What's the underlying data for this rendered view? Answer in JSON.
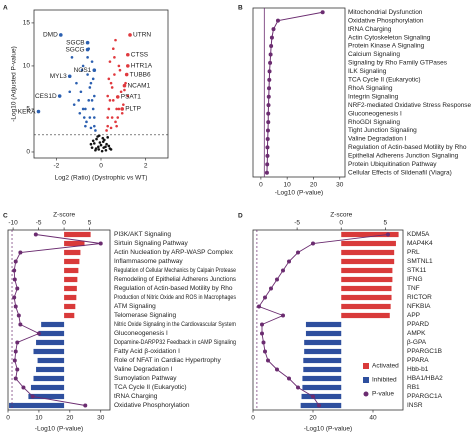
{
  "chart_data": [
    {
      "type": "scatter",
      "panel": "A",
      "xlabel": "Log2 (Ratio) (Dystrophic vs WT)",
      "ylabel": "-Log10 (Adjusted P-value)",
      "xlim": [
        -3,
        3
      ],
      "ylim": [
        -0.7,
        16.5
      ],
      "xticks": [
        -2,
        0,
        2
      ],
      "yticks": [
        0,
        5,
        10,
        15
      ],
      "threshold": 2,
      "series": [
        {
          "color": "#111111",
          "x": [
            -0.4,
            -0.3,
            -0.2,
            -0.1,
            0,
            0.1,
            0.2,
            0.3,
            0.4,
            -0.25,
            -0.15,
            0.05,
            0.15,
            0.25,
            -0.05,
            0.35,
            -0.35,
            0.45,
            -0.45,
            0.12,
            -0.12,
            0.08,
            -0.08,
            0.22,
            -0.22
          ],
          "y": [
            0.5,
            1,
            1.5,
            0.3,
            0.8,
            1.2,
            0.6,
            1.7,
            0.4,
            0.2,
            1.8,
            0.1,
            1.4,
            0.9,
            1.1,
            0.7,
            1.3,
            0.3,
            0.9,
            0.5,
            0.6,
            1.6,
            1.9,
            0.2,
            0.4
          ]
        },
        {
          "color": "#2b5fb0",
          "x": [
            -0.3,
            -0.5,
            -0.7,
            -0.4,
            -0.9,
            -1.1,
            -0.6,
            -0.8,
            -1.3,
            -0.35,
            -0.45,
            -0.55,
            -1.0,
            -0.75,
            -0.65,
            -0.25,
            -0.85,
            -1.2,
            -0.5,
            -0.4,
            -0.3,
            -0.95,
            -0.6,
            -0.7,
            -1.4,
            -0.45,
            -0.35,
            -0.55,
            -0.8,
            -0.3
          ],
          "y": [
            3,
            4,
            5,
            6,
            7,
            8,
            9,
            10,
            11,
            5,
            8,
            12,
            6,
            4,
            3.5,
            2.5,
            9.5,
            5.5,
            7.5,
            10.5,
            6.5,
            4.5,
            11,
            3,
            7,
            2.8,
            8.5,
            6,
            5,
            4
          ]
        },
        {
          "color": "#e0393e",
          "x": [
            0.3,
            0.5,
            0.7,
            0.4,
            0.9,
            1.1,
            0.6,
            0.8,
            1.2,
            0.35,
            0.45,
            0.55,
            1.0,
            0.75,
            0.65,
            0.25,
            0.85,
            0.5,
            0.4,
            0.3,
            0.95,
            0.6,
            0.7,
            0.45,
            0.35,
            0.55,
            0.8,
            0.3,
            1.05,
            0.65
          ],
          "y": [
            3,
            4,
            5,
            6,
            7,
            8,
            9,
            10,
            6.5,
            5,
            8,
            12,
            5.5,
            4,
            3.5,
            2.5,
            9.5,
            7.5,
            10.5,
            6.5,
            4.5,
            11,
            3,
            2.8,
            8.5,
            6,
            5,
            4,
            7.2,
            13
          ]
        },
        {
          "color": "#2b5fb0",
          "labels": [
            "DMD",
            "SGCB",
            "SGCG",
            "NOS1",
            "MYL3",
            "CES1D",
            "KERA"
          ],
          "x": [
            -1.8,
            -0.6,
            -0.6,
            -0.3,
            -1.4,
            -1.85,
            -2.8
          ],
          "y": [
            13.6,
            12.7,
            11.9,
            9.5,
            8.8,
            6.5,
            4.7
          ]
        },
        {
          "color": "#e0393e",
          "labels": [
            "UTRN",
            "CTSS",
            "HTR1A",
            "TUBB6",
            "NCAM1",
            "PSAT1",
            "PLTP"
          ],
          "x": [
            1.3,
            1.2,
            1.2,
            1.15,
            1.05,
            0.75,
            0.95
          ],
          "y": [
            13.6,
            11.3,
            10,
            9,
            7.7,
            6.4,
            5
          ]
        }
      ]
    },
    {
      "type": "line",
      "panel": "B",
      "color": "#6b2c70",
      "categories": [
        "Mitochondrial Dysfunction",
        "Oxidative Phosphorylation",
        "tRNA Charging",
        "Actin Cytoskeleton Signaling",
        "Protein Kinase A Signaling",
        "Calcium Signaling",
        "Signaling by Rho Family GTPases",
        "ILK Signaling",
        "TCA Cycle II (Eukaryotic)",
        "RhoA Signaling",
        "Integrin Signaling",
        "NRF2-mediated Oxidative Stress Response",
        "Gluconeogenesis I",
        "RhoGDI Signaling",
        "Tight Junction Signaling",
        "Valine Degradation I",
        "Regulation of Actin-based Motility by Rho",
        "Epithelial Adherens Junction Signaling",
        "Protein Ubiquitination Pathway",
        "Cellular Effects of Sildenafil (Viagra)"
      ],
      "values": [
        23.5,
        6.5,
        4.8,
        4.2,
        3.9,
        3.7,
        3.5,
        3.3,
        3.2,
        3.1,
        3.0,
        2.9,
        2.8,
        2.8,
        2.7,
        2.6,
        2.5,
        2.5,
        2.4,
        2.3
      ],
      "xlabel": "-Log10 (P-value)",
      "xlim": [
        -3,
        32
      ],
      "xticks": [
        0,
        10,
        20,
        30
      ],
      "threshold": 1.3
    },
    {
      "type": "bar",
      "panel": "C",
      "zlabel": "Z-score",
      "xlabel": "-Log10 (P-value)",
      "categories": [
        "PI3K/AKT Signaling",
        "Sirtuin Signaling Pathway",
        "Actin Nucleation by ARP-WASP Complex",
        "Inflammasome pathway",
        "Regulation of Cellular Mechanics by Calpain Protease",
        "Remodeling of Epithelial Adherens Junctions",
        "Regulation of Actin-based Motility by Rho",
        "Production of Nitric Oxide and ROS in Macrophages",
        "ATM Signaling",
        "Telomerase Signaling",
        "Nitric Oxide Signaling in the Cardiovascular System",
        "Gluconeogenesis I",
        "Dopamine-DARPP32 Feedback in cAMP Signaling",
        "Fatty Acid β-oxidation I",
        "Role of NFAT in Cardiac Hypertrophy",
        "Valine Degradation I",
        "Sumoylation Pathway",
        "TCA Cycle II (Eukaryotic)",
        "tRNA Charging",
        "Oxidative Phosphorylation"
      ],
      "z_values": [
        5.2,
        4.0,
        3.2,
        3.0,
        2.8,
        2.6,
        2.5,
        2.4,
        2.2,
        2.0,
        -4.5,
        -5.0,
        -5.5,
        -6.0,
        -5.2,
        -5.5,
        -6.0,
        -6.5,
        -7.0,
        -10.8
      ],
      "p_values": [
        9,
        30,
        4,
        2.5,
        2,
        2.2,
        3,
        2,
        2.5,
        3.5,
        4,
        10,
        3,
        2.5,
        2.2,
        3,
        2.5,
        5,
        8,
        25
      ],
      "zlim": [
        -11,
        9
      ],
      "zticks": [
        -10,
        -5,
        0,
        5
      ],
      "xlim": [
        0,
        33
      ],
      "xticks": [
        0,
        10,
        20,
        30
      ],
      "threshold": 1.3,
      "pos_color": "#d93a3a",
      "neg_color": "#2e4f9e",
      "p_color": "#6b2c70"
    },
    {
      "type": "bar",
      "panel": "D",
      "zlabel": "Z-score",
      "xlabel": "-Log10 (P-value)",
      "categories": [
        "KDM5A",
        "MAP4K4",
        "PRL",
        "SMTNL1",
        "STK11",
        "IFNG",
        "TNF",
        "RICTOR",
        "NFKBIA",
        "APP",
        "PPARD",
        "AMPK",
        "β-GPA",
        "PPARGC1B",
        "PPARA",
        "Hbb-b1",
        "HBA1/HBA2",
        "RB1",
        "PPARGC1A",
        "INSR"
      ],
      "z_values": [
        6.5,
        6.2,
        6.0,
        6.0,
        5.8,
        5.8,
        5.7,
        5.7,
        5.6,
        5.5,
        -4.0,
        -4.0,
        -4.2,
        -4.2,
        -4.3,
        -4.3,
        -4.4,
        -4.4,
        -4.5,
        -4.6
      ],
      "p_values": [
        45,
        20,
        15,
        12,
        10,
        8,
        6,
        4,
        2,
        10,
        3,
        3,
        3.5,
        4,
        5,
        8,
        12,
        15,
        20,
        22
      ],
      "zlim": [
        -10,
        7
      ],
      "zticks": [
        -5,
        0,
        5
      ],
      "xlim": [
        0,
        50
      ],
      "xticks": [
        0,
        20,
        40
      ],
      "threshold": 1.3,
      "pos_color": "#d93a3a",
      "neg_color": "#2e4f9e",
      "p_color": "#6b2c70",
      "legend": [
        "Activated",
        "Inhibited",
        "P-value"
      ],
      "legend_position": "lower right"
    }
  ]
}
